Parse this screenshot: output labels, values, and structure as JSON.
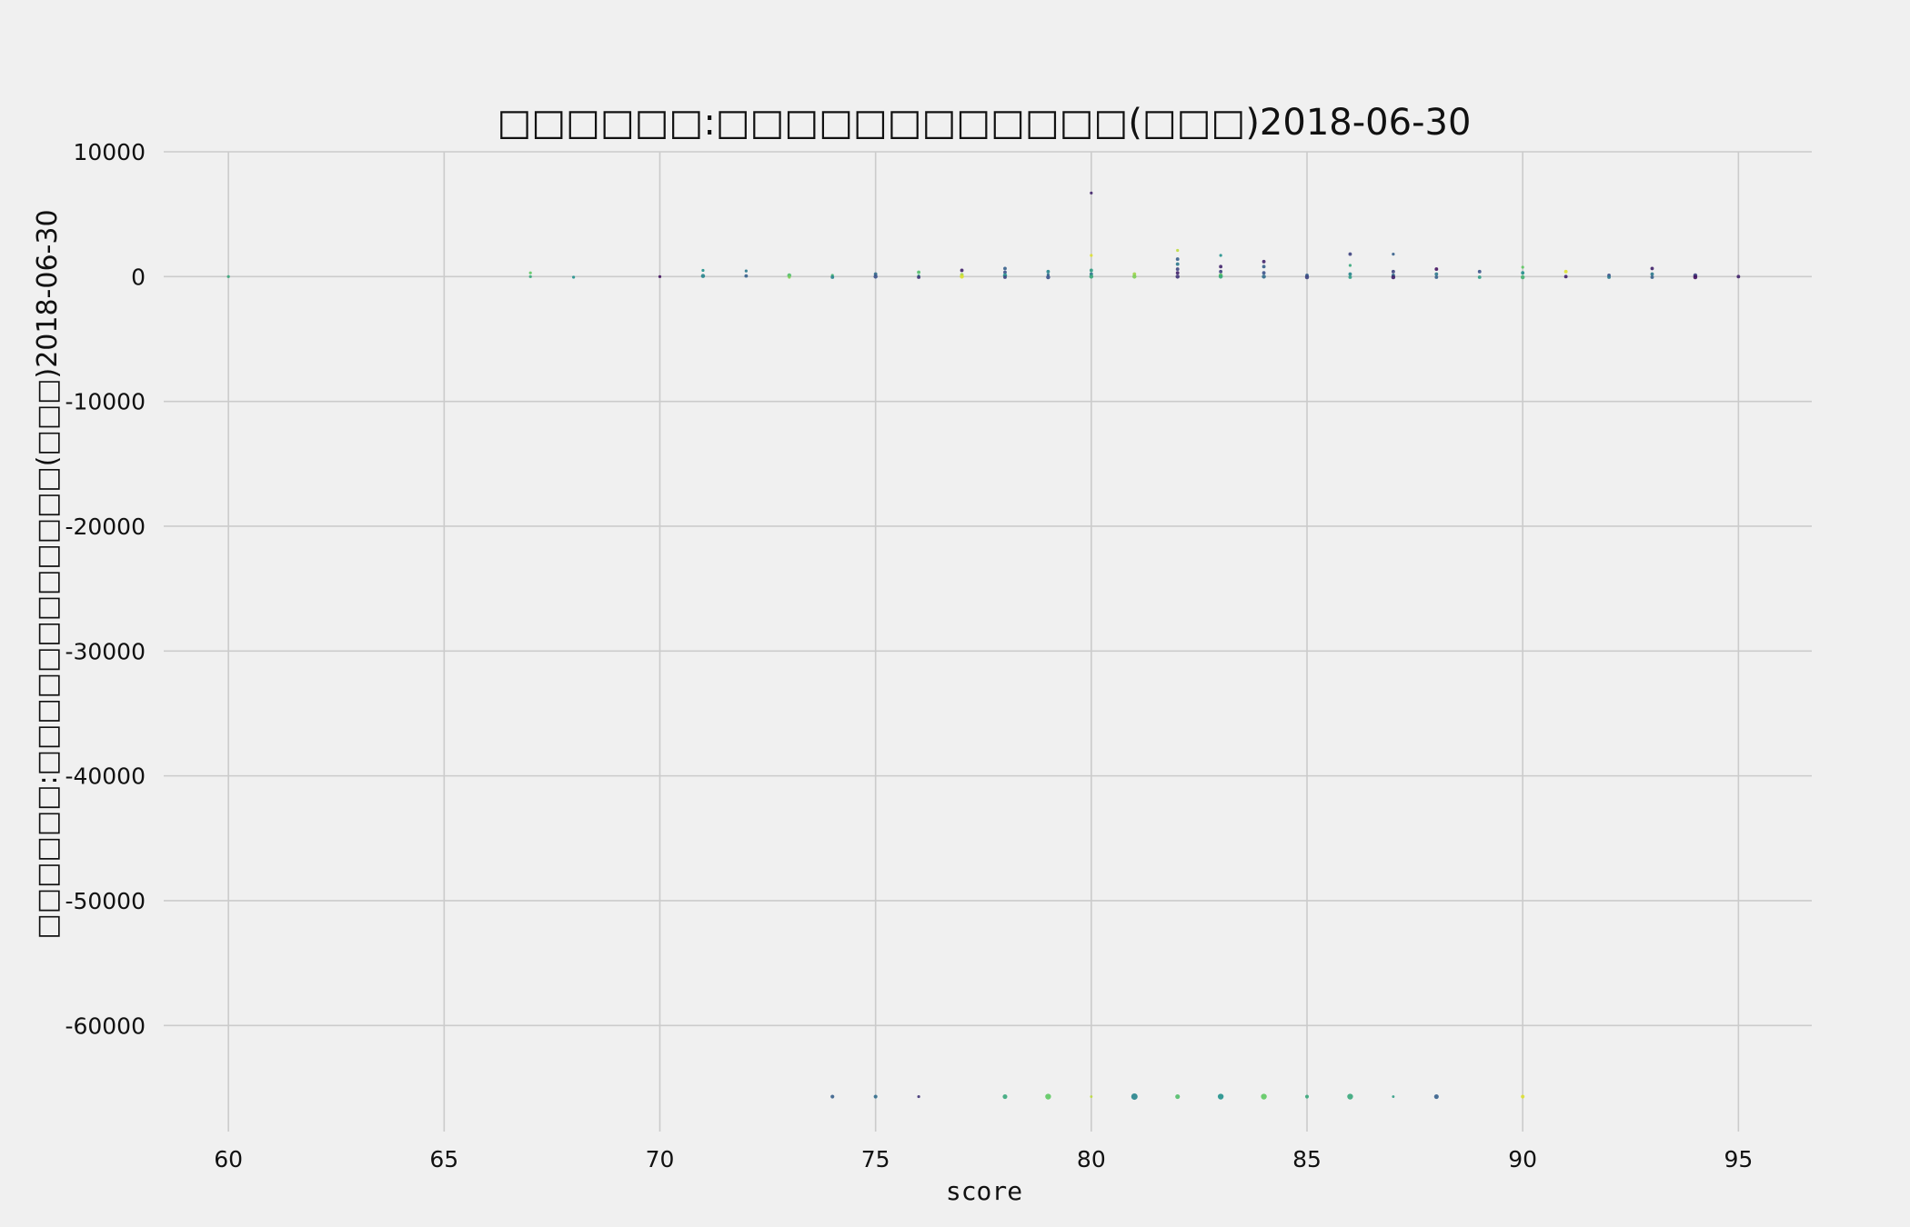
{
  "chart_data": {
    "type": "scatter",
    "title": "□□□□□□:□□□□□□□□□□□□(□□□)2018-06-30",
    "xlabel": "score",
    "ylabel": "□□□□□□:□□□□□□□□□□□□(□□□)2018-06-30",
    "xlim": [
      58.5,
      96.7
    ],
    "ylim": [
      -68500,
      10000
    ],
    "xticks": [
      60,
      65,
      70,
      75,
      80,
      85,
      90,
      95
    ],
    "yticks": [
      10000,
      0,
      -10000,
      -20000,
      -30000,
      -40000,
      -50000,
      -60000
    ],
    "grid": true,
    "legend": "none",
    "colormap": "viridis",
    "points": [
      {
        "x": 60,
        "y": 0,
        "c": 0.6,
        "s": 1
      },
      {
        "x": 67,
        "y": 300,
        "c": 0.75,
        "s": 1
      },
      {
        "x": 67,
        "y": 0,
        "c": 0.6,
        "s": 1
      },
      {
        "x": 68,
        "y": -50,
        "c": 0.5,
        "s": 1
      },
      {
        "x": 70,
        "y": 0,
        "c": 0.05,
        "s": 1
      },
      {
        "x": 71,
        "y": 500,
        "c": 0.5,
        "s": 1
      },
      {
        "x": 71,
        "y": 50,
        "c": 0.45,
        "s": 1.4
      },
      {
        "x": 72,
        "y": 450,
        "c": 0.4,
        "s": 1
      },
      {
        "x": 72,
        "y": 50,
        "c": 0.3,
        "s": 1.2
      },
      {
        "x": 73,
        "y": 100,
        "c": 0.7,
        "s": 1.4
      },
      {
        "x": 73,
        "y": -50,
        "c": 0.8,
        "s": 1
      },
      {
        "x": 74,
        "y": 100,
        "c": 0.65,
        "s": 1
      },
      {
        "x": 74,
        "y": -50,
        "c": 0.45,
        "s": 1.2
      },
      {
        "x": 75,
        "y": 200,
        "c": 0.35,
        "s": 1.2
      },
      {
        "x": 75,
        "y": 0,
        "c": 0.25,
        "s": 1.4
      },
      {
        "x": 76,
        "y": 350,
        "c": 0.7,
        "s": 1.2
      },
      {
        "x": 76,
        "y": 50,
        "c": 0.55,
        "s": 1
      },
      {
        "x": 76,
        "y": -50,
        "c": 0.15,
        "s": 1.2
      },
      {
        "x": 77,
        "y": 500,
        "c": 0.1,
        "s": 1.2
      },
      {
        "x": 77,
        "y": 150,
        "c": 0.85,
        "s": 1.2
      },
      {
        "x": 77,
        "y": 0,
        "c": 0.95,
        "s": 1.4
      },
      {
        "x": 78,
        "y": 650,
        "c": 0.3,
        "s": 1.2
      },
      {
        "x": 78,
        "y": 350,
        "c": 0.25,
        "s": 1.2
      },
      {
        "x": 78,
        "y": 100,
        "c": 0.5,
        "s": 1.4
      },
      {
        "x": 78,
        "y": -50,
        "c": 0.2,
        "s": 1.2
      },
      {
        "x": 79,
        "y": 400,
        "c": 0.45,
        "s": 1.2
      },
      {
        "x": 79,
        "y": 150,
        "c": 0.35,
        "s": 1
      },
      {
        "x": 79,
        "y": -50,
        "c": 0.25,
        "s": 1.4
      },
      {
        "x": 80,
        "y": 6700,
        "c": 0.1,
        "s": 1
      },
      {
        "x": 80,
        "y": 1700,
        "c": 0.95,
        "s": 1
      },
      {
        "x": 80,
        "y": 500,
        "c": 0.55,
        "s": 1.2
      },
      {
        "x": 80,
        "y": 200,
        "c": 0.4,
        "s": 1.2
      },
      {
        "x": 80,
        "y": 0,
        "c": 0.6,
        "s": 1.4
      },
      {
        "x": 81,
        "y": 200,
        "c": 0.85,
        "s": 1.2
      },
      {
        "x": 81,
        "y": 0,
        "c": 0.8,
        "s": 1.4
      },
      {
        "x": 82,
        "y": 2100,
        "c": 0.9,
        "s": 1
      },
      {
        "x": 82,
        "y": 1400,
        "c": 0.3,
        "s": 1.2
      },
      {
        "x": 82,
        "y": 1000,
        "c": 0.4,
        "s": 1.2
      },
      {
        "x": 82,
        "y": 600,
        "c": 0.2,
        "s": 1.2
      },
      {
        "x": 82,
        "y": 300,
        "c": 0.1,
        "s": 1.2
      },
      {
        "x": 82,
        "y": 0,
        "c": 0.15,
        "s": 1.4
      },
      {
        "x": 83,
        "y": 1700,
        "c": 0.5,
        "s": 1
      },
      {
        "x": 83,
        "y": 800,
        "c": 0.1,
        "s": 1.2
      },
      {
        "x": 83,
        "y": 400,
        "c": 0.2,
        "s": 1.2
      },
      {
        "x": 83,
        "y": 100,
        "c": 0.75,
        "s": 1.4
      },
      {
        "x": 83,
        "y": 0,
        "c": 0.6,
        "s": 1.4
      },
      {
        "x": 84,
        "y": 1200,
        "c": 0.1,
        "s": 1.2
      },
      {
        "x": 84,
        "y": 800,
        "c": 0.3,
        "s": 1.2
      },
      {
        "x": 84,
        "y": 300,
        "c": 0.25,
        "s": 1.2
      },
      {
        "x": 84,
        "y": 0,
        "c": 0.35,
        "s": 1.4
      },
      {
        "x": 85,
        "y": 100,
        "c": 0.3,
        "s": 1.2
      },
      {
        "x": 85,
        "y": -50,
        "c": 0.2,
        "s": 1.4
      },
      {
        "x": 86,
        "y": 1800,
        "c": 0.2,
        "s": 1.2
      },
      {
        "x": 86,
        "y": 900,
        "c": 0.6,
        "s": 1
      },
      {
        "x": 86,
        "y": 200,
        "c": 0.45,
        "s": 1.2
      },
      {
        "x": 86,
        "y": -50,
        "c": 0.55,
        "s": 1.2
      },
      {
        "x": 87,
        "y": 1800,
        "c": 0.3,
        "s": 1
      },
      {
        "x": 87,
        "y": 400,
        "c": 0.2,
        "s": 1.2
      },
      {
        "x": 87,
        "y": 100,
        "c": 0.35,
        "s": 1.2
      },
      {
        "x": 87,
        "y": -50,
        "c": 0.1,
        "s": 1.4
      },
      {
        "x": 88,
        "y": 600,
        "c": 0.05,
        "s": 1.2
      },
      {
        "x": 88,
        "y": 200,
        "c": 0.4,
        "s": 1.2
      },
      {
        "x": 88,
        "y": -50,
        "c": 0.3,
        "s": 1.2
      },
      {
        "x": 89,
        "y": 400,
        "c": 0.25,
        "s": 1.2
      },
      {
        "x": 89,
        "y": -50,
        "c": 0.55,
        "s": 1.2
      },
      {
        "x": 90,
        "y": 750,
        "c": 0.75,
        "s": 1
      },
      {
        "x": 90,
        "y": 300,
        "c": 0.5,
        "s": 1.2
      },
      {
        "x": 90,
        "y": -50,
        "c": 0.65,
        "s": 1.4
      },
      {
        "x": 91,
        "y": 400,
        "c": 0.95,
        "s": 1.2
      },
      {
        "x": 91,
        "y": 0,
        "c": 0.1,
        "s": 1.2
      },
      {
        "x": 92,
        "y": 100,
        "c": 0.25,
        "s": 1.2
      },
      {
        "x": 92,
        "y": -50,
        "c": 0.4,
        "s": 1.2
      },
      {
        "x": 93,
        "y": 650,
        "c": 0.1,
        "s": 1.2
      },
      {
        "x": 93,
        "y": 200,
        "c": 0.4,
        "s": 1.2
      },
      {
        "x": 93,
        "y": -50,
        "c": 0.3,
        "s": 1.2
      },
      {
        "x": 94,
        "y": 100,
        "c": 0.2,
        "s": 1.4
      },
      {
        "x": 94,
        "y": -50,
        "c": 0.05,
        "s": 1.4
      },
      {
        "x": 95,
        "y": 0,
        "c": 0.1,
        "s": 1.2
      },
      {
        "x": 74,
        "y": -65700,
        "c": 0.3,
        "s": 1.3
      },
      {
        "x": 75,
        "y": -65700,
        "c": 0.35,
        "s": 1.3
      },
      {
        "x": 76,
        "y": -65700,
        "c": 0.15,
        "s": 1
      },
      {
        "x": 78,
        "y": -65700,
        "c": 0.6,
        "s": 1.6
      },
      {
        "x": 79,
        "y": -65700,
        "c": 0.75,
        "s": 2
      },
      {
        "x": 80,
        "y": -65700,
        "c": 0.9,
        "s": 0.9
      },
      {
        "x": 81,
        "y": -65700,
        "c": 0.45,
        "s": 2.2
      },
      {
        "x": 82,
        "y": -65700,
        "c": 0.7,
        "s": 1.6
      },
      {
        "x": 83,
        "y": -65700,
        "c": 0.5,
        "s": 2
      },
      {
        "x": 84,
        "y": -65700,
        "c": 0.75,
        "s": 2
      },
      {
        "x": 85,
        "y": -65700,
        "c": 0.6,
        "s": 1.3
      },
      {
        "x": 86,
        "y": -65700,
        "c": 0.6,
        "s": 2
      },
      {
        "x": 87,
        "y": -65700,
        "c": 0.55,
        "s": 0.9
      },
      {
        "x": 88,
        "y": -65700,
        "c": 0.3,
        "s": 1.6
      },
      {
        "x": 90,
        "y": -65700,
        "c": 0.95,
        "s": 1.3
      }
    ]
  }
}
